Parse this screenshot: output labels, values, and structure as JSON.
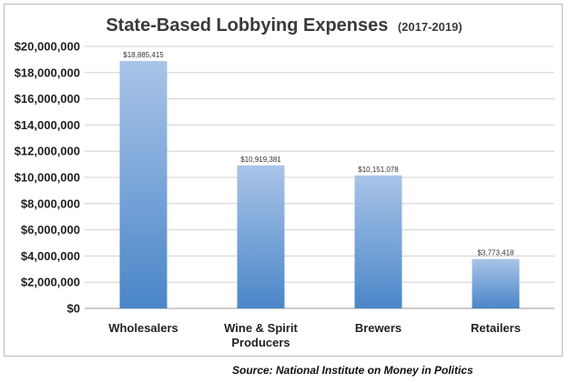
{
  "chart_data": {
    "type": "bar",
    "title": "State-Based Lobbying Expenses",
    "subtitle": "(2017-2019)",
    "categories": [
      "Wholesalers",
      "Wine & Spirit Producers",
      "Brewers",
      "Retailers"
    ],
    "values": [
      18885415,
      10919381,
      10151078,
      3773418
    ],
    "data_labels": [
      "$18,885,415",
      "$10,919,381",
      "$10,151,078",
      "$3,773,418"
    ],
    "ylim": [
      0,
      20000000
    ],
    "yticks": [
      0,
      2000000,
      4000000,
      6000000,
      8000000,
      10000000,
      12000000,
      14000000,
      16000000,
      18000000,
      20000000
    ],
    "ytick_labels": [
      "$0",
      "$2,000,000",
      "$4,000,000",
      "$6,000,000",
      "$8,000,000",
      "$10,000,000",
      "$12,000,000",
      "$14,000,000",
      "$16,000,000",
      "$18,000,000",
      "$20,000,000"
    ],
    "xtick_lines": [
      [
        "Wholesalers"
      ],
      [
        "Wine & Spirit",
        "Producers"
      ],
      [
        "Brewers"
      ],
      [
        "Retailers"
      ]
    ],
    "xlabel": "",
    "ylabel": "",
    "grid": true,
    "legend": "none",
    "bar_color_top": "#a9c4e8",
    "bar_color_bottom": "#4a86c8"
  },
  "source_note": "Source: National Institute on Money in Politics"
}
